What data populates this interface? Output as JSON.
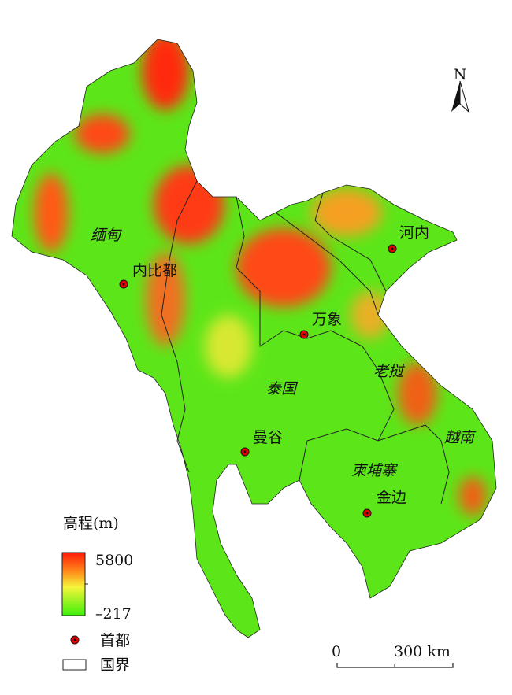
{
  "north_arrow": {
    "label": "N"
  },
  "countries": [
    "缅甸",
    "泰国",
    "老挝",
    "柬埔寨",
    "越南"
  ],
  "capitals": [
    "内比都",
    "万象",
    "河内",
    "曼谷",
    "金边"
  ],
  "legend": {
    "title": "高程(m)",
    "max_label": "5800",
    "min_label": "–217",
    "ramp_colors": [
      "#ff1a0a",
      "#ff8a1a",
      "#f5f53a",
      "#3df00a"
    ],
    "capital_label": "首都",
    "border_label": "国界"
  },
  "scale_bar": {
    "zero": "0",
    "end": "300 km"
  },
  "colors": {
    "lowland": "#5ce619",
    "highland": "#ff2a10",
    "capital_marker": "#e00000"
  }
}
